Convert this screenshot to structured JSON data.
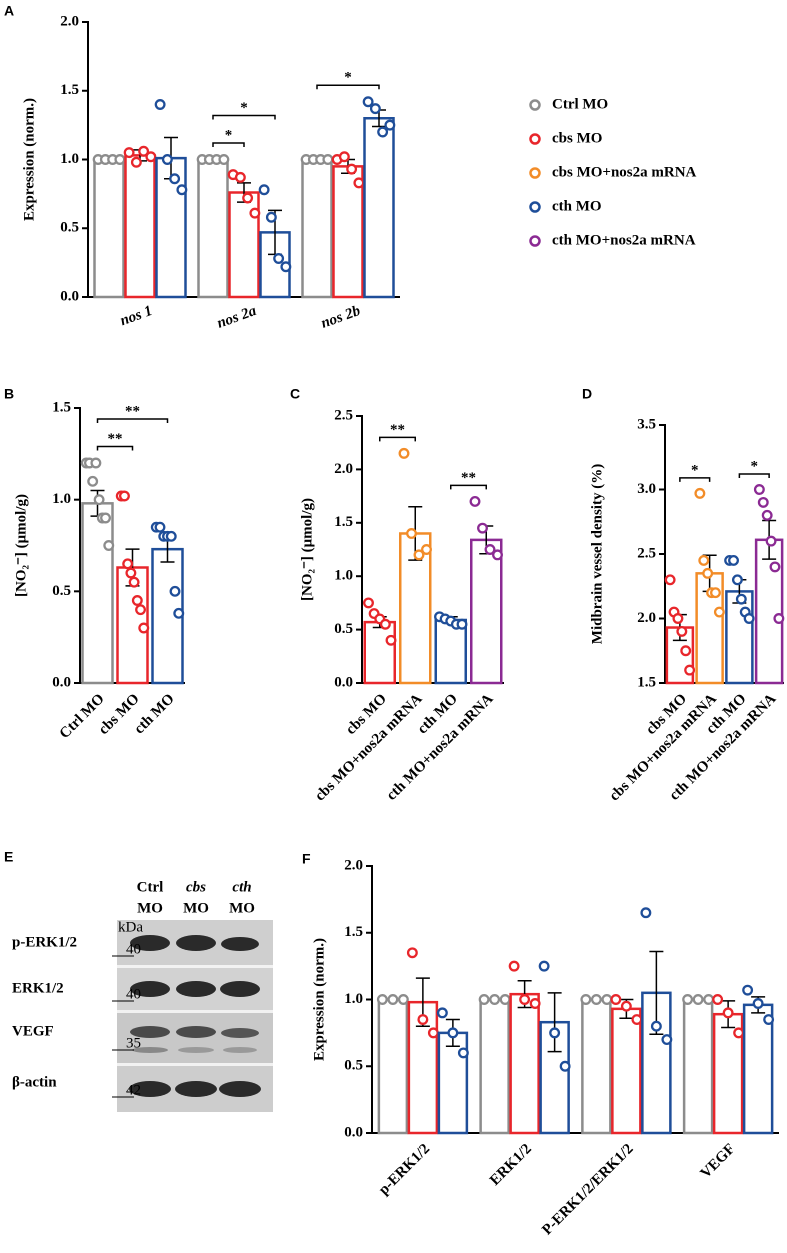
{
  "chart_data": [
    {
      "panel_label": "A",
      "type": "grouped_bar",
      "y_label": "Expression (norm.)",
      "categories": [
        "nos 1",
        "nos 2a",
        "nos 2b"
      ],
      "ylim": [
        0,
        2
      ],
      "yticks": [
        {
          "value": 0,
          "label": "0.0"
        },
        0.5,
        {
          "value": 1,
          "label": "1.0"
        },
        1.5,
        {
          "value": 2,
          "label": "2.0"
        }
      ],
      "series": [
        {
          "color": "#8c8c8c",
          "values": [
            1,
            1,
            1
          ],
          "points": [
            [
              1,
              1,
              1,
              1
            ],
            [
              1,
              1,
              1,
              1
            ],
            [
              1,
              1,
              1,
              1
            ]
          ]
        },
        {
          "color": "#e8262b",
          "values": [
            1.03,
            0.76,
            0.95
          ],
          "errors": [
            0.04,
            0.07,
            0.05
          ],
          "points": [
            [
              1.05,
              0.98,
              1.06,
              1.02
            ],
            [
              0.89,
              0.87,
              0.72,
              0.61
            ],
            [
              1.0,
              1.02,
              0.93,
              0.83
            ]
          ]
        },
        {
          "color": "#1f4e99",
          "values": [
            1.01,
            0.47,
            1.3
          ],
          "errors": [
            0.15,
            0.16,
            0.06
          ],
          "points": [
            [
              1.4,
              1.0,
              0.86,
              0.78
            ],
            [
              0.78,
              0.58,
              0.28,
              0.22
            ],
            [
              1.42,
              1.37,
              1.2,
              1.25
            ]
          ]
        }
      ],
      "comparisons": [
        {
          "label": "*",
          "category": 1,
          "series": [
            0,
            1
          ]
        },
        {
          "label": "*",
          "category": 1,
          "series": [
            0,
            2
          ]
        },
        {
          "label": "*",
          "category": 2,
          "series": [
            0,
            2
          ]
        }
      ],
      "legend": [
        {
          "name": "Ctrl MO",
          "color": "#8c8c8c"
        },
        {
          "name": "cbs MO",
          "color": "#e8262b"
        },
        {
          "name": "cbs MO+nos2a mRNA",
          "color": "#f28c28"
        },
        {
          "name": "cth MO",
          "color": "#1f4e99"
        },
        {
          "name": "cth MO+nos2a mRNA",
          "color": "#8b2a93"
        }
      ]
    },
    {
      "panel_label": "B",
      "type": "bar",
      "y_label": "[NO₂⁻] (μmol/g)",
      "categories": [
        "Ctrl MO",
        "cbs MO",
        "cth MO"
      ],
      "ylim": [
        0,
        1.5
      ],
      "yticks": [
        {
          "value": 0,
          "label": "0.0"
        },
        0.5,
        {
          "value": 1,
          "label": "1.0"
        },
        1.5
      ],
      "colors": [
        "#8c8c8c",
        "#e8262b",
        "#1f4e99"
      ],
      "values": [
        0.98,
        0.63,
        0.73
      ],
      "errors": [
        0.07,
        0.1,
        0.07
      ],
      "points": [
        [
          1.2,
          1.2,
          1.1,
          1.2,
          1.0,
          0.9,
          0.9,
          0.75
        ],
        [
          1.02,
          1.02,
          0.65,
          0.6,
          0.55,
          0.45,
          0.4,
          0.3
        ],
        [
          0.85,
          0.85,
          0.8,
          0.8,
          0.8,
          0.5,
          0.38
        ]
      ],
      "comparisons": [
        {
          "label": "**",
          "categories": [
            0,
            1
          ]
        },
        {
          "label": "**",
          "categories": [
            0,
            2
          ]
        }
      ]
    },
    {
      "panel_label": "C",
      "type": "bar",
      "y_label": "[NO₂⁻] (μmol/g)",
      "categories": [
        "cbs MO",
        "cbs MO+nos2a mRNA",
        "cth MO",
        "cth MO+nos2a mRNA"
      ],
      "ylim": [
        0,
        2.5
      ],
      "yticks": [
        {
          "value": 0,
          "label": "0.0"
        },
        0.5,
        {
          "value": 1,
          "label": "1.0"
        },
        1.5,
        {
          "value": 2,
          "label": "2.0"
        },
        2.5
      ],
      "colors": [
        "#e8262b",
        "#f28c28",
        "#1f4e99",
        "#8b2a93"
      ],
      "values": [
        0.57,
        1.4,
        0.59,
        1.34
      ],
      "errors": [
        0.05,
        0.25,
        0.03,
        0.13
      ],
      "points": [
        [
          0.75,
          0.65,
          0.6,
          0.55,
          0.4
        ],
        [
          2.15,
          1.4,
          1.2,
          1.25
        ],
        [
          0.62,
          0.6,
          0.58,
          0.55,
          0.55
        ],
        [
          1.7,
          1.45,
          1.25,
          1.2
        ]
      ],
      "comparisons": [
        {
          "label": "**",
          "categories": [
            0,
            1
          ]
        },
        {
          "label": "**",
          "categories": [
            2,
            3
          ]
        }
      ]
    },
    {
      "panel_label": "D",
      "type": "bar",
      "y_label": "Midbrain vessel density (%)",
      "categories": [
        "cbs MO",
        "cbs MO+nos2a mRNA",
        "cth MO",
        "cth MO+nos2a mRNA"
      ],
      "ylim": [
        1.5,
        3.5
      ],
      "yticks": [
        1.5,
        {
          "value": 2,
          "label": "2.0"
        },
        2.5,
        {
          "value": 3,
          "label": "3.0"
        },
        3.5
      ],
      "colors": [
        "#e8262b",
        "#f28c28",
        "#1f4e99",
        "#8b2a93"
      ],
      "values": [
        1.93,
        2.35,
        2.21,
        2.61
      ],
      "errors": [
        0.1,
        0.14,
        0.09,
        0.15
      ],
      "points": [
        [
          2.3,
          2.05,
          2.0,
          1.9,
          1.75,
          1.6
        ],
        [
          2.97,
          2.45,
          2.35,
          2.2,
          2.2,
          2.05
        ],
        [
          2.45,
          2.45,
          2.3,
          2.15,
          2.05,
          2.0
        ],
        [
          3.0,
          2.9,
          2.8,
          2.6,
          2.4,
          2.0
        ]
      ],
      "comparisons": [
        {
          "label": "*",
          "categories": [
            0,
            1
          ]
        },
        {
          "label": "*",
          "categories": [
            2,
            3
          ]
        }
      ]
    },
    {
      "panel_label": "F",
      "type": "grouped_bar",
      "y_label": "Expression (norm.)",
      "categories": [
        "p-ERK1/2",
        "ERK1/2",
        "P-ERK1/2/ERK1/2",
        "VEGF"
      ],
      "ylim": [
        0,
        2
      ],
      "yticks": [
        {
          "value": 0,
          "label": "0.0"
        },
        0.5,
        {
          "value": 1,
          "label": "1.0"
        },
        1.5,
        {
          "value": 2,
          "label": "2.0"
        }
      ],
      "series": [
        {
          "color": "#8c8c8c",
          "values": [
            1,
            1,
            1,
            1
          ],
          "points": [
            [
              1,
              1,
              1
            ],
            [
              1,
              1,
              1
            ],
            [
              1,
              1,
              1
            ],
            [
              1,
              1,
              1
            ]
          ]
        },
        {
          "color": "#e8262b",
          "values": [
            0.98,
            1.04,
            0.93,
            0.89
          ],
          "errors": [
            0.18,
            0.1,
            0.07,
            0.1
          ],
          "points": [
            [
              1.35,
              0.85,
              0.75
            ],
            [
              1.25,
              1.0,
              0.97
            ],
            [
              1.0,
              0.95,
              0.85
            ],
            [
              1.0,
              0.9,
              0.75
            ]
          ]
        },
        {
          "color": "#1f4e99",
          "values": [
            0.75,
            0.83,
            1.05,
            0.96
          ],
          "errors": [
            0.1,
            0.22,
            0.31,
            0.06
          ],
          "points": [
            [
              0.9,
              0.75,
              0.6
            ],
            [
              1.25,
              0.75,
              0.5
            ],
            [
              1.65,
              0.8,
              0.7
            ],
            [
              1.07,
              0.97,
              0.85
            ]
          ]
        }
      ]
    }
  ],
  "blot": {
    "panel_label": "E",
    "columns": [
      [
        "Ctrl",
        "MO"
      ],
      [
        "cbs",
        "MO"
      ],
      [
        "cth",
        "MO"
      ]
    ],
    "unit": "kDa",
    "rows": [
      {
        "label": "p-ERK1/2",
        "marker": 40
      },
      {
        "label": "ERK1/2",
        "marker": 40
      },
      {
        "label": "VEGF",
        "marker": 35
      },
      {
        "label": "β-actin",
        "marker": 42
      }
    ]
  }
}
